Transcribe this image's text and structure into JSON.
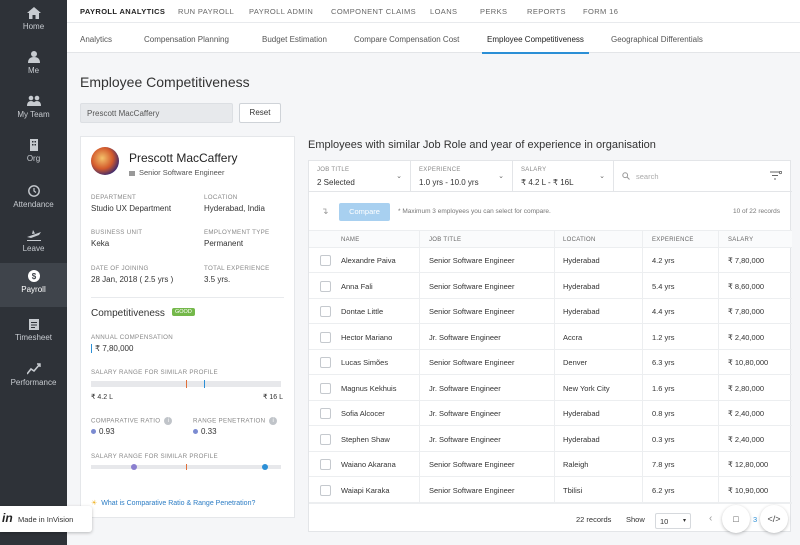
{
  "sidebar": {
    "items": [
      {
        "label": "Home",
        "icon": "home-icon"
      },
      {
        "label": "Me",
        "icon": "person-icon"
      },
      {
        "label": "My Team",
        "icon": "team-icon"
      },
      {
        "label": "Org",
        "icon": "org-icon"
      },
      {
        "label": "Attendance",
        "icon": "clock-icon"
      },
      {
        "label": "Leave",
        "icon": "plane-icon"
      },
      {
        "label": "Payroll",
        "icon": "dollar-icon",
        "active": true
      },
      {
        "label": "Timesheet",
        "icon": "clipboard-icon"
      },
      {
        "label": "Performance",
        "icon": "chart-icon"
      }
    ]
  },
  "topnav": {
    "items": [
      "PAYROLL ANALYTICS",
      "RUN PAYROLL",
      "PAYROLL ADMIN",
      "COMPONENT CLAIMS",
      "LOANS",
      "PERKS",
      "REPORTS",
      "FORM 16"
    ]
  },
  "subnav": {
    "items": [
      "Analytics",
      "Compensation Planning",
      "Budget Estimation",
      "Compare Compensation Cost",
      "Employee Competitiveness",
      "Geographical Differentials"
    ]
  },
  "page": {
    "title": "Employee Competitiveness",
    "search_value": "Prescott MacCaffery",
    "reset_label": "Reset"
  },
  "profile": {
    "name": "Prescott MacCaffery",
    "job_title": "Senior Software Engineer",
    "department_label": "DEPARTMENT",
    "department": "Studio UX Department",
    "location_label": "LOCATION",
    "location": "Hyderabad, India",
    "business_unit_label": "BUSINESS UNIT",
    "business_unit": "Keka",
    "employment_type_label": "EMPLOYMENT TYPE",
    "employment_type": "Permanent",
    "doj_label": "DATE OF JOINING",
    "doj": "28 Jan, 2018 ( 2.5 yrs )",
    "experience_label": "TOTAL EXPERIENCE",
    "experience": "3.5 yrs."
  },
  "competitiveness": {
    "title": "Competitiveness",
    "badge": "GOOD",
    "annual_comp_label": "ANNUAL COMPENSATION",
    "annual_comp": "₹ 7,80,000",
    "salary_range_label": "SALARY RANGE FOR SIMILAR PROFILE",
    "range_min": "₹ 4.2 L",
    "range_max": "₹ 16 L",
    "comparative_ratio_label": "COMPARATIVE RATIO",
    "comparative_ratio": "0.93",
    "range_penetration_label": "RANGE PENETRATION",
    "range_penetration": "0.33",
    "salary_range_label_2": "SALARY RANGE FOR SIMILAR PROFILE",
    "help_link": "What is Comparative Ratio & Range Penetration?"
  },
  "table_section": {
    "title": "Employees with similar Job Role and year of experience in organisation",
    "filters": [
      {
        "label": "JOB TITLE",
        "value": "2 Selected"
      },
      {
        "label": "EXPERIENCE",
        "value": "1.0 yrs - 10.0 yrs"
      },
      {
        "label": "SALARY",
        "value": "₹ 4.2 L - ₹ 16L"
      }
    ],
    "search_placeholder": "search",
    "compare_label": "Compare",
    "note": "* Maximum 3 employees you can select for compare.",
    "count": "10 of 22 records",
    "columns": [
      "NAME",
      "JOB TITLE",
      "LOCATION",
      "EXPERIENCE",
      "SALARY"
    ],
    "rows": [
      [
        "Alexandre Paiva",
        "Senior Software Engineer",
        "Hyderabad",
        "4.2 yrs",
        "₹ 7,80,000"
      ],
      [
        "Anna Fali",
        "Senior Software Engineer",
        "Hyderabad",
        "5.4 yrs",
        "₹ 8,60,000"
      ],
      [
        "Dontae Little",
        "Senior Software Engineer",
        "Hyderabad",
        "4.4 yrs",
        "₹ 7,80,000"
      ],
      [
        "Hector Mariano",
        "Jr. Software Engineer",
        "Accra",
        "1.2 yrs",
        "₹ 2,40,000"
      ],
      [
        "Lucas Simões",
        "Senior Software Engineer",
        "Denver",
        "6.3 yrs",
        "₹ 10,80,000"
      ],
      [
        "Magnus Kekhuis",
        "Jr. Software Engineer",
        "New York City",
        "1.6 yrs",
        "₹ 2,80,000"
      ],
      [
        "Sofia Alcocer",
        "Jr. Software Engineer",
        "Hyderabad",
        "0.8 yrs",
        "₹ 2,40,000"
      ],
      [
        "Stephen Shaw",
        "Jr. Software Engineer",
        "Hyderabad",
        "0.3 yrs",
        "₹ 2,40,000"
      ],
      [
        "Waiano Akarana",
        "Senior Software Engineer",
        "Raleigh",
        "7.8 yrs",
        "₹ 12,80,000"
      ],
      [
        "Waiapi Karaka",
        "Senior Software Engineer",
        "Tbilisi",
        "6.2 yrs",
        "₹ 10,90,000"
      ]
    ],
    "records": "22 records",
    "show_label": "Show",
    "page_size": "10",
    "page_number": "3"
  },
  "invision": {
    "label": "Made in InVision"
  },
  "colors": {
    "accent": "#2b8fd6",
    "good": "#74b84a",
    "sidebar": "#2e3238"
  }
}
